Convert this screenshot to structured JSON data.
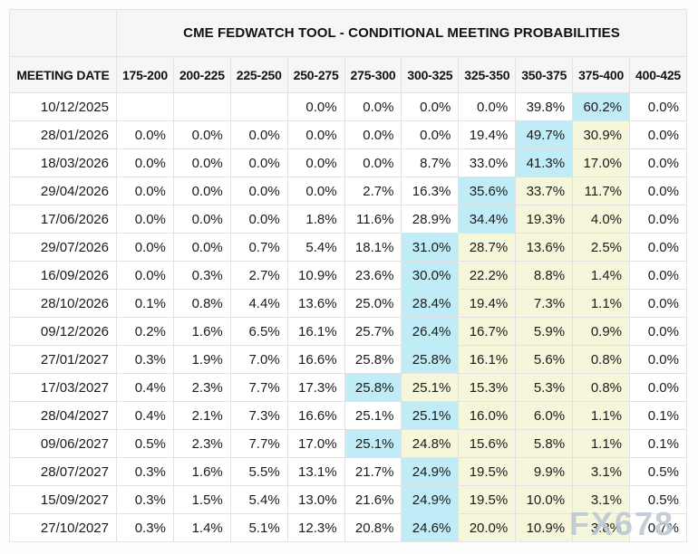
{
  "page": {
    "watermark": "FX678"
  },
  "colors": {
    "highlight_max": "#bfecf6",
    "highlight_tail": "#f6f6da",
    "border": "#e2e2e2",
    "header_bg": "#f6f6f6",
    "page_bg": "#fdfdfd",
    "text": "#1b1b1b",
    "watermark": "rgba(175,189,203,0.75)"
  },
  "chart_data": {
    "type": "table",
    "title": "CME FEDWATCH TOOL - CONDITIONAL MEETING PROBABILITIES",
    "columns": [
      "MEETING DATE",
      "175-200",
      "200-225",
      "225-250",
      "250-275",
      "275-300",
      "300-325",
      "325-350",
      "350-375",
      "375-400",
      "400-425"
    ],
    "legend": {
      "highlight_max": "highest probability cell (cyan)",
      "highlight_tail": "probabilities right of maximum (pale yellow)"
    },
    "rows": [
      {
        "date": "10/12/2025",
        "values": [
          "",
          "",
          "",
          "0.0%",
          "0.0%",
          "0.0%",
          "0.0%",
          "39.8%",
          "60.2%",
          "0.0%"
        ],
        "max_index": 8,
        "tail_indices": []
      },
      {
        "date": "28/01/2026",
        "values": [
          "0.0%",
          "0.0%",
          "0.0%",
          "0.0%",
          "0.0%",
          "0.0%",
          "19.4%",
          "49.7%",
          "30.9%",
          "0.0%"
        ],
        "max_index": 7,
        "tail_indices": [
          8
        ]
      },
      {
        "date": "18/03/2026",
        "values": [
          "0.0%",
          "0.0%",
          "0.0%",
          "0.0%",
          "0.0%",
          "8.7%",
          "33.0%",
          "41.3%",
          "17.0%",
          "0.0%"
        ],
        "max_index": 7,
        "tail_indices": [
          8
        ]
      },
      {
        "date": "29/04/2026",
        "values": [
          "0.0%",
          "0.0%",
          "0.0%",
          "0.0%",
          "2.7%",
          "16.3%",
          "35.6%",
          "33.7%",
          "11.7%",
          "0.0%"
        ],
        "max_index": 6,
        "tail_indices": [
          7,
          8
        ]
      },
      {
        "date": "17/06/2026",
        "values": [
          "0.0%",
          "0.0%",
          "0.0%",
          "1.8%",
          "11.6%",
          "28.9%",
          "34.4%",
          "19.3%",
          "4.0%",
          "0.0%"
        ],
        "max_index": 6,
        "tail_indices": [
          7,
          8
        ]
      },
      {
        "date": "29/07/2026",
        "values": [
          "0.0%",
          "0.0%",
          "0.7%",
          "5.4%",
          "18.1%",
          "31.0%",
          "28.7%",
          "13.6%",
          "2.5%",
          "0.0%"
        ],
        "max_index": 5,
        "tail_indices": [
          6,
          7,
          8
        ]
      },
      {
        "date": "16/09/2026",
        "values": [
          "0.0%",
          "0.3%",
          "2.7%",
          "10.9%",
          "23.6%",
          "30.0%",
          "22.2%",
          "8.8%",
          "1.4%",
          "0.0%"
        ],
        "max_index": 5,
        "tail_indices": [
          6,
          7,
          8
        ]
      },
      {
        "date": "28/10/2026",
        "values": [
          "0.1%",
          "0.8%",
          "4.4%",
          "13.6%",
          "25.0%",
          "28.4%",
          "19.4%",
          "7.3%",
          "1.1%",
          "0.0%"
        ],
        "max_index": 5,
        "tail_indices": [
          6,
          7,
          8
        ]
      },
      {
        "date": "09/12/2026",
        "values": [
          "0.2%",
          "1.6%",
          "6.5%",
          "16.1%",
          "25.7%",
          "26.4%",
          "16.7%",
          "5.9%",
          "0.9%",
          "0.0%"
        ],
        "max_index": 5,
        "tail_indices": [
          6,
          7,
          8
        ]
      },
      {
        "date": "27/01/2027",
        "values": [
          "0.3%",
          "1.9%",
          "7.0%",
          "16.6%",
          "25.8%",
          "25.8%",
          "16.1%",
          "5.6%",
          "0.8%",
          "0.0%"
        ],
        "max_index": 5,
        "tail_indices": [
          6,
          7,
          8
        ]
      },
      {
        "date": "17/03/2027",
        "values": [
          "0.4%",
          "2.3%",
          "7.7%",
          "17.3%",
          "25.8%",
          "25.1%",
          "15.3%",
          "5.3%",
          "0.8%",
          "0.0%"
        ],
        "max_index": 4,
        "tail_indices": [
          5,
          6,
          7,
          8
        ]
      },
      {
        "date": "28/04/2027",
        "values": [
          "0.4%",
          "2.1%",
          "7.3%",
          "16.6%",
          "25.1%",
          "25.1%",
          "16.0%",
          "6.0%",
          "1.1%",
          "0.1%"
        ],
        "max_index": 5,
        "tail_indices": [
          6,
          7,
          8
        ]
      },
      {
        "date": "09/06/2027",
        "values": [
          "0.5%",
          "2.3%",
          "7.7%",
          "17.0%",
          "25.1%",
          "24.8%",
          "15.6%",
          "5.8%",
          "1.1%",
          "0.1%"
        ],
        "max_index": 4,
        "tail_indices": [
          5,
          6,
          7,
          8
        ]
      },
      {
        "date": "28/07/2027",
        "values": [
          "0.3%",
          "1.6%",
          "5.5%",
          "13.1%",
          "21.7%",
          "24.9%",
          "19.5%",
          "9.9%",
          "3.1%",
          "0.5%"
        ],
        "max_index": 5,
        "tail_indices": [
          6,
          7,
          8
        ]
      },
      {
        "date": "15/09/2027",
        "values": [
          "0.3%",
          "1.5%",
          "5.4%",
          "13.0%",
          "21.6%",
          "24.9%",
          "19.5%",
          "10.0%",
          "3.1%",
          "0.5%"
        ],
        "max_index": 5,
        "tail_indices": [
          6,
          7,
          8
        ]
      },
      {
        "date": "27/10/2027",
        "values": [
          "0.3%",
          "1.4%",
          "5.1%",
          "12.3%",
          "20.8%",
          "24.6%",
          "20.0%",
          "10.9%",
          "3.8%",
          "0.7%"
        ],
        "max_index": 5,
        "tail_indices": [
          6,
          7,
          8
        ]
      }
    ]
  }
}
